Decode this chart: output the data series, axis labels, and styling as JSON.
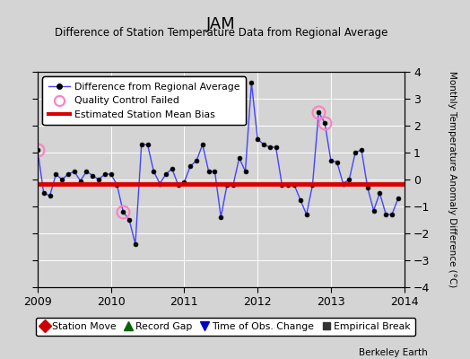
{
  "title": "JAM",
  "subtitle": "Difference of Station Temperature Data from Regional Average",
  "ylabel_right": "Monthly Temperature Anomaly Difference (°C)",
  "xlim": [
    2009.0,
    2014.0
  ],
  "ylim": [
    -4,
    4
  ],
  "yticks": [
    -4,
    -3,
    -2,
    -1,
    0,
    1,
    2,
    3,
    4
  ],
  "xticks": [
    2009,
    2010,
    2011,
    2012,
    2013,
    2014
  ],
  "bias_line_y": -0.15,
  "background_color": "#d4d4d4",
  "grid_color": "#ffffff",
  "line_color": "#4444ff",
  "bias_color": "#dd0000",
  "times": [
    2009.0,
    2009.083,
    2009.167,
    2009.25,
    2009.333,
    2009.417,
    2009.5,
    2009.583,
    2009.667,
    2009.75,
    2009.833,
    2009.917,
    2010.0,
    2010.083,
    2010.167,
    2010.25,
    2010.333,
    2010.417,
    2010.5,
    2010.583,
    2010.667,
    2010.75,
    2010.833,
    2010.917,
    2011.0,
    2011.083,
    2011.167,
    2011.25,
    2011.333,
    2011.417,
    2011.5,
    2011.583,
    2011.667,
    2011.75,
    2011.833,
    2011.917,
    2012.0,
    2012.083,
    2012.167,
    2012.25,
    2012.333,
    2012.417,
    2012.5,
    2012.583,
    2012.667,
    2012.75,
    2012.833,
    2012.917,
    2013.0,
    2013.083,
    2013.167,
    2013.25,
    2013.333,
    2013.417,
    2013.5,
    2013.583,
    2013.667,
    2013.75,
    2013.833,
    2013.917
  ],
  "values": [
    1.1,
    -0.5,
    -0.6,
    0.2,
    0.0,
    0.2,
    0.3,
    -0.05,
    0.3,
    0.15,
    0.0,
    0.2,
    0.2,
    -0.2,
    -1.2,
    -1.5,
    -2.4,
    1.3,
    1.3,
    0.3,
    -0.15,
    0.2,
    0.4,
    -0.2,
    -0.1,
    0.5,
    0.7,
    1.3,
    0.3,
    0.3,
    -1.4,
    -0.2,
    -0.2,
    0.8,
    0.3,
    3.6,
    1.5,
    1.3,
    1.2,
    1.2,
    -0.2,
    -0.2,
    -0.2,
    -0.75,
    -1.3,
    -0.2,
    2.5,
    2.1,
    0.7,
    0.65,
    -0.15,
    0.0,
    1.0,
    1.1,
    -0.3,
    -1.15,
    -0.5,
    -1.3,
    -1.3,
    -0.7
  ],
  "qc_failed_indices": [
    0,
    14,
    46,
    47
  ],
  "watermark": "Berkeley Earth"
}
